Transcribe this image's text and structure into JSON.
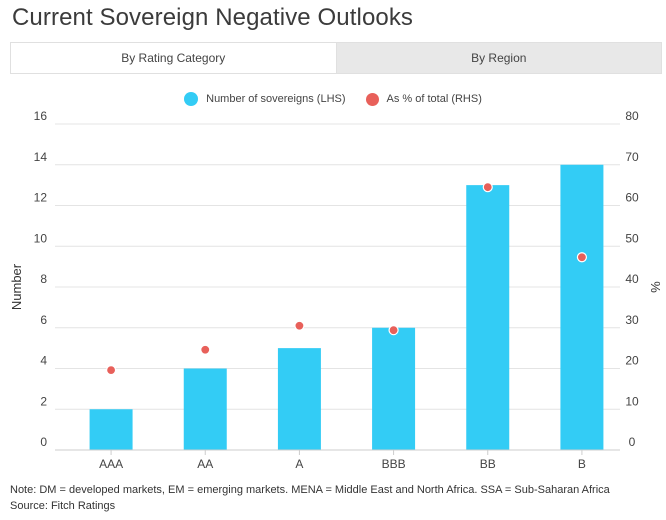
{
  "title": "Current Sovereign Negative Outlooks",
  "tabs": [
    {
      "label": "By Rating Category",
      "active": true
    },
    {
      "label": "By Region",
      "active": false
    }
  ],
  "colors": {
    "bar": "#33ccf5",
    "dot": "#e8605a",
    "grid": "#e4e4e4"
  },
  "chart_data": {
    "type": "bar",
    "categories": [
      "AAA",
      "AA",
      "A",
      "BBB",
      "BB",
      "B"
    ],
    "series": [
      {
        "name": "Number of sovereigns (LHS)",
        "type": "bar",
        "axis": "left",
        "values": [
          2,
          4,
          5,
          6,
          13,
          14
        ]
      },
      {
        "name": "As % of total (RHS)",
        "type": "scatter",
        "axis": "right",
        "values": [
          19.6,
          24.6,
          30.5,
          29.4,
          64.5,
          47.3
        ]
      }
    ],
    "ylabel": "Number",
    "y2label": "%",
    "ylim": [
      0,
      16
    ],
    "y2lim": [
      0,
      80
    ],
    "yticks": [
      0,
      2,
      4,
      6,
      8,
      10,
      12,
      14,
      16
    ],
    "y2ticks": [
      0,
      10,
      20,
      30,
      40,
      50,
      60,
      70,
      80
    ],
    "grid": true,
    "legend": "top-center"
  },
  "footer": {
    "note": "Note: DM = developed markets, EM = emerging markets. MENA = Middle East and North Africa. SSA = Sub-Saharan  Africa",
    "source": "Source: Fitch Ratings"
  }
}
